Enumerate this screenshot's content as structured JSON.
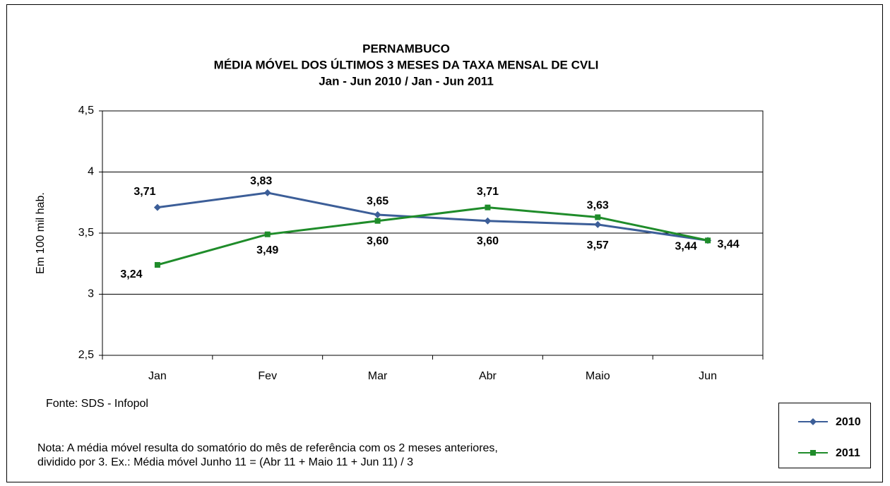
{
  "chart_data": {
    "type": "line",
    "title": [
      "PERNAMBUCO",
      "MÉDIA MÓVEL DOS ÚLTIMOS 3 MESES DA TAXA MENSAL DE CVLI",
      "Jan - Jun 2010 / Jan - Jun 2011"
    ],
    "y_label": "Em 100 mil hab.",
    "categories": [
      "Jan",
      "Fev",
      "Mar",
      "Abr",
      "Maio",
      "Jun"
    ],
    "series": [
      {
        "name": "2010",
        "color": "#3c5e98",
        "label_color": "#4a6d9c",
        "marker": "diamond",
        "values": [
          3.71,
          3.83,
          3.65,
          3.6,
          3.57,
          3.44
        ],
        "value_labels": [
          "3,71",
          "3,83",
          "3,65",
          "3,60",
          "3,57",
          "3,44"
        ]
      },
      {
        "name": "2011",
        "color": "#1f8c2a",
        "label_color": "#0a8a10",
        "marker": "square",
        "values": [
          3.24,
          3.49,
          3.6,
          3.71,
          3.63,
          3.44
        ],
        "value_labels": [
          "3,24",
          "3,49",
          "3,60",
          "3,71",
          "3,63",
          "3,44"
        ]
      }
    ],
    "ylim": [
      2.5,
      4.5
    ],
    "yticks": [
      {
        "value": 2.5,
        "label": "2,5"
      },
      3,
      {
        "value": 3.5,
        "label": "3,5"
      },
      4,
      {
        "value": 4.5,
        "label": "4,5"
      }
    ],
    "grid": true,
    "legend": "lower right",
    "source": "Fonte: SDS - Infopol",
    "note": [
      "Nota: A média móvel resulta do somatório do mês de referência com os 2 meses anteriores,",
      "dividido por 3. Ex.: Média móvel  Junho 11 = (Abr 11 + Maio 11 + Jun 11) / 3"
    ]
  }
}
